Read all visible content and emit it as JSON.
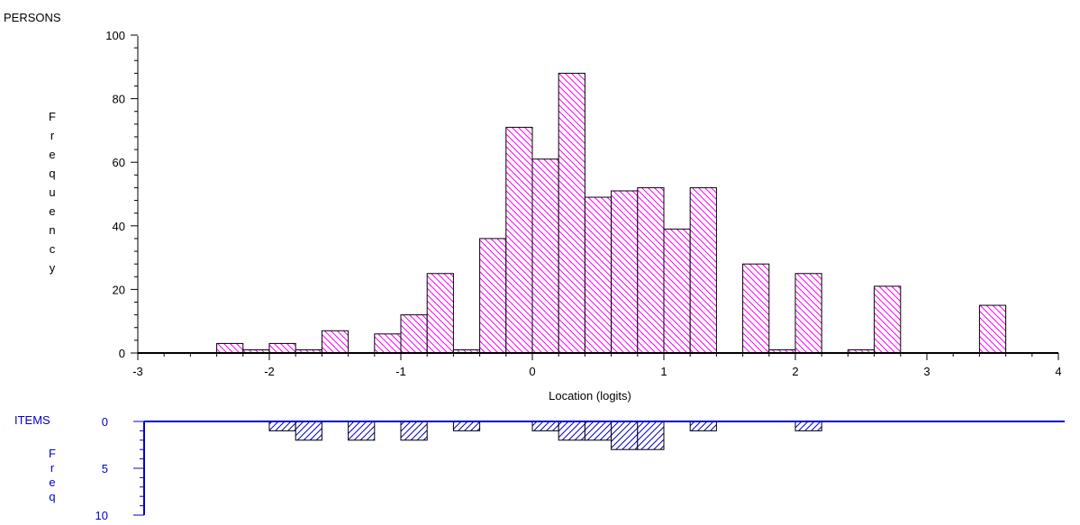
{
  "colors": {
    "person_hatch": "#ff00ff",
    "item_hatch": "#0000cc",
    "person_axis": "#000000",
    "item_axis": "#0000cc"
  },
  "chart_data": [
    {
      "type": "bar",
      "title": "PERSONS",
      "xlabel": "Location (logits)",
      "ylabel": "Frequency",
      "xlim": [
        -3,
        4
      ],
      "ylim": [
        0,
        100
      ],
      "x_ticks": [
        "-3",
        "-2",
        "-1",
        "0",
        "1",
        "2",
        "3",
        "4"
      ],
      "y_ticks": [
        "0",
        "20",
        "40",
        "60",
        "80",
        "100"
      ],
      "bin_width": 0.2,
      "grid": false,
      "bins": [
        {
          "x": -2.3,
          "value": 3
        },
        {
          "x": -2.1,
          "value": 1
        },
        {
          "x": -1.9,
          "value": 3
        },
        {
          "x": -1.7,
          "value": 1
        },
        {
          "x": -1.5,
          "value": 7
        },
        {
          "x": -1.1,
          "value": 6
        },
        {
          "x": -0.9,
          "value": 12
        },
        {
          "x": -0.7,
          "value": 25
        },
        {
          "x": -0.5,
          "value": 1
        },
        {
          "x": -0.3,
          "value": 36
        },
        {
          "x": -0.1,
          "value": 71
        },
        {
          "x": 0.1,
          "value": 61
        },
        {
          "x": 0.3,
          "value": 88
        },
        {
          "x": 0.5,
          "value": 49
        },
        {
          "x": 0.7,
          "value": 51
        },
        {
          "x": 0.9,
          "value": 52
        },
        {
          "x": 1.1,
          "value": 39
        },
        {
          "x": 1.3,
          "value": 52
        },
        {
          "x": 1.7,
          "value": 28
        },
        {
          "x": 1.9,
          "value": 1
        },
        {
          "x": 2.1,
          "value": 25
        },
        {
          "x": 2.5,
          "value": 1
        },
        {
          "x": 2.7,
          "value": 21
        },
        {
          "x": 3.5,
          "value": 15
        }
      ]
    },
    {
      "type": "bar",
      "title": "ITEMS",
      "ylabel": "Freq",
      "xlim": [
        -3,
        4
      ],
      "ylim": [
        0,
        10
      ],
      "y_ticks": [
        "0",
        "5",
        "10"
      ],
      "bin_width": 0.2,
      "inverted": true,
      "bins": [
        {
          "x": -1.9,
          "value": 1
        },
        {
          "x": -1.7,
          "value": 2
        },
        {
          "x": -1.3,
          "value": 2
        },
        {
          "x": -0.9,
          "value": 2
        },
        {
          "x": -0.5,
          "value": 1
        },
        {
          "x": 0.1,
          "value": 1
        },
        {
          "x": 0.3,
          "value": 2
        },
        {
          "x": 0.5,
          "value": 2
        },
        {
          "x": 0.7,
          "value": 3
        },
        {
          "x": 0.9,
          "value": 3
        },
        {
          "x": 1.3,
          "value": 1
        },
        {
          "x": 2.1,
          "value": 1
        }
      ]
    }
  ]
}
